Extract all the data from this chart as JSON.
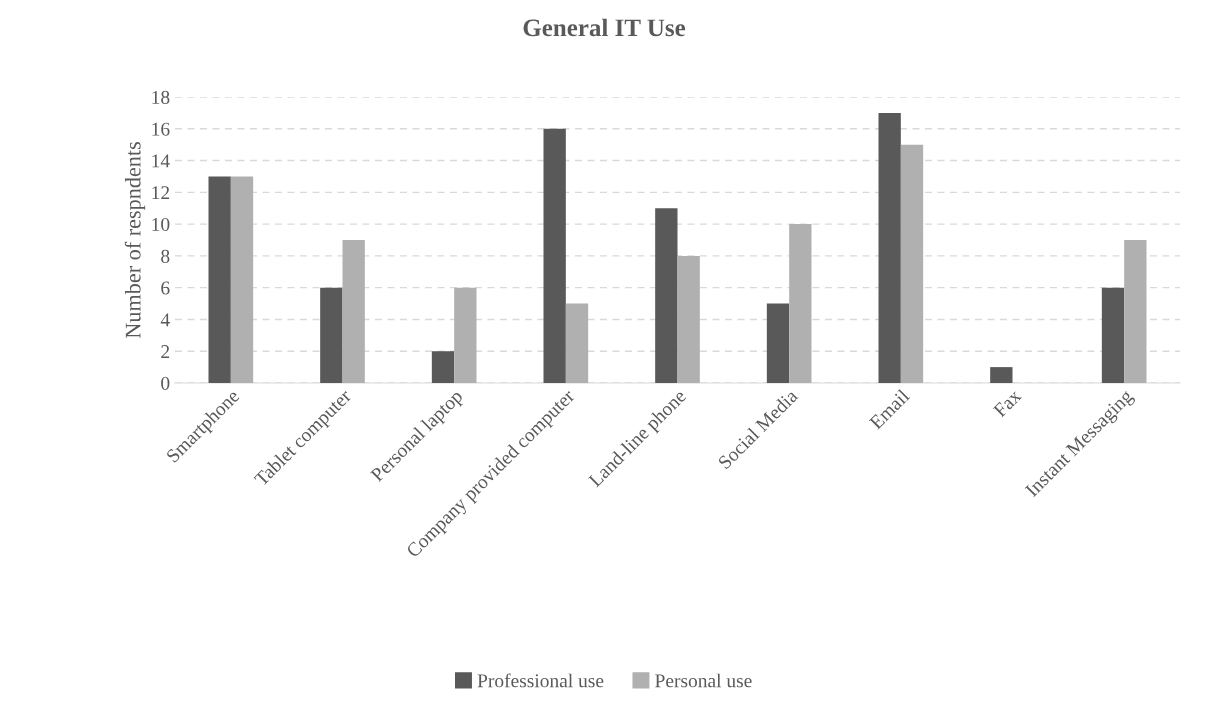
{
  "chart_data": {
    "type": "bar",
    "title": "General IT Use",
    "ylabel": "Number of respndents",
    "categories": [
      "Smartphone",
      "Tablet computer",
      "Personal laptop",
      "Company provided computer",
      "Land-line phone",
      "Social Media",
      "Email",
      "Fax",
      "Instant Messaging"
    ],
    "series": [
      {
        "name": "Professional use",
        "color": "#595959",
        "values": [
          13,
          6,
          2,
          16,
          11,
          5,
          17,
          1,
          6
        ]
      },
      {
        "name": "Personal use",
        "color": "#b0b0b0",
        "values": [
          13,
          9,
          6,
          5,
          8,
          10,
          15,
          0,
          9
        ]
      }
    ],
    "ylim": [
      0,
      18
    ],
    "yticks": [
      0,
      2,
      4,
      6,
      8,
      10,
      12,
      14,
      16,
      18
    ],
    "grid": "y",
    "legend": "bottom"
  }
}
